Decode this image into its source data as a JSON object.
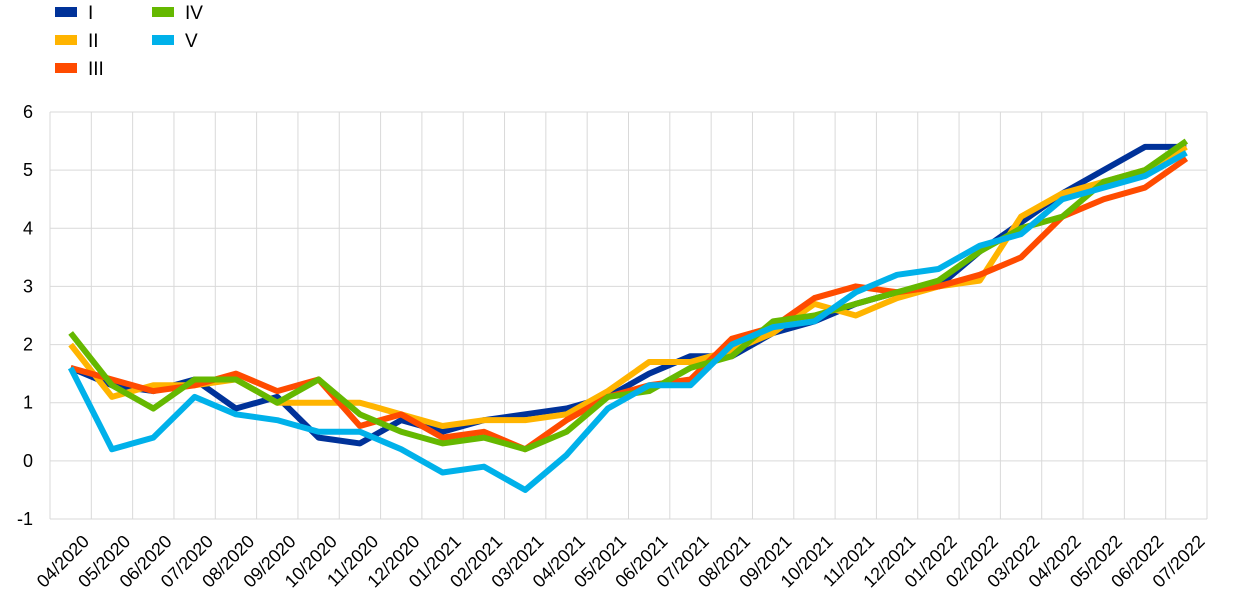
{
  "chart_data": {
    "type": "line",
    "title": "",
    "xlabel": "",
    "ylabel": "",
    "ylim": [
      -1,
      6
    ],
    "yticks": [
      -1,
      0,
      1,
      2,
      3,
      4,
      5,
      6
    ],
    "grid": true,
    "legend_position": "top-left",
    "categories": [
      "04/2020",
      "05/2020",
      "06/2020",
      "07/2020",
      "08/2020",
      "09/2020",
      "10/2020",
      "11/2020",
      "12/2020",
      "01/2021",
      "02/2021",
      "03/2021",
      "04/2021",
      "05/2021",
      "06/2021",
      "07/2021",
      "08/2021",
      "09/2021",
      "10/2021",
      "11/2021",
      "12/2021",
      "01/2022",
      "02/2022",
      "03/2022",
      "04/2022",
      "05/2022",
      "06/2022",
      "07/2022"
    ],
    "series": [
      {
        "name": "I",
        "color": "#003299",
        "values": [
          1.6,
          1.3,
          1.2,
          1.4,
          0.9,
          1.1,
          0.4,
          0.3,
          0.7,
          0.5,
          0.7,
          0.8,
          0.9,
          1.1,
          1.5,
          1.8,
          1.8,
          2.2,
          2.4,
          2.7,
          2.9,
          3.0,
          3.6,
          4.1,
          4.6,
          5.0,
          5.4,
          5.4
        ]
      },
      {
        "name": "II",
        "color": "#FFB400",
        "values": [
          2.0,
          1.1,
          1.3,
          1.3,
          1.4,
          1.0,
          1.0,
          1.0,
          0.8,
          0.6,
          0.7,
          0.7,
          0.8,
          1.2,
          1.7,
          1.7,
          1.9,
          2.2,
          2.7,
          2.5,
          2.8,
          3.0,
          3.1,
          4.2,
          4.6,
          4.8,
          5.0,
          5.4
        ]
      },
      {
        "name": "III",
        "color": "#FF4B00",
        "values": [
          1.6,
          1.4,
          1.2,
          1.3,
          1.5,
          1.2,
          1.4,
          0.6,
          0.8,
          0.4,
          0.5,
          0.2,
          0.7,
          1.1,
          1.3,
          1.4,
          2.1,
          2.3,
          2.8,
          3.0,
          2.9,
          3.0,
          3.2,
          3.5,
          4.2,
          4.5,
          4.7,
          5.2
        ]
      },
      {
        "name": "IV",
        "color": "#65B800",
        "values": [
          2.2,
          1.3,
          0.9,
          1.4,
          1.4,
          1.0,
          1.4,
          0.8,
          0.5,
          0.3,
          0.4,
          0.2,
          0.5,
          1.1,
          1.2,
          1.6,
          1.8,
          2.4,
          2.5,
          2.7,
          2.9,
          3.1,
          3.6,
          4.0,
          4.2,
          4.8,
          5.0,
          5.5
        ]
      },
      {
        "name": "V",
        "color": "#00B1EA",
        "values": [
          1.6,
          0.2,
          0.4,
          1.1,
          0.8,
          0.7,
          0.5,
          0.5,
          0.2,
          -0.2,
          -0.1,
          -0.5,
          0.1,
          0.9,
          1.3,
          1.3,
          2.0,
          2.3,
          2.4,
          2.9,
          3.2,
          3.3,
          3.7,
          3.9,
          4.5,
          4.7,
          4.9,
          5.3
        ]
      }
    ]
  }
}
